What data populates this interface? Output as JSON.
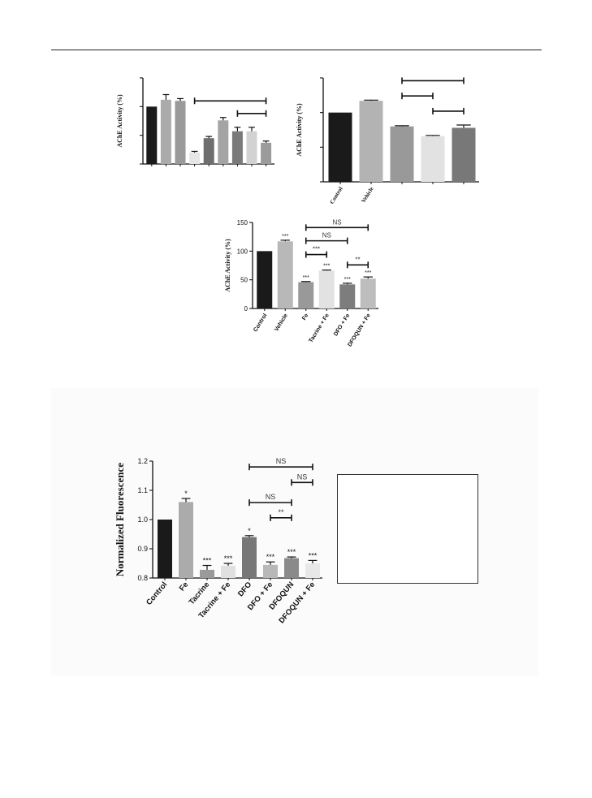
{
  "chart_data": [
    {
      "id": "chart-a",
      "type": "bar",
      "ylabel": "AChE Activity (%)",
      "categories": [
        "",
        "",
        "",
        "",
        "",
        "",
        "",
        "",
        ""
      ],
      "values": [
        100,
        112,
        110,
        20,
        45,
        76,
        57,
        57,
        37
      ],
      "errors": [
        0,
        9,
        4,
        2,
        3,
        5,
        7,
        7,
        3
      ],
      "colors": [
        "#1a1a1a",
        "#ababab",
        "#9a9a9a",
        "#e6e6e6",
        "#6e6e6e",
        "#a4a4a4",
        "#7a7a7a",
        "#d2d2d2",
        "#9b9b9b"
      ],
      "ylim": [
        0,
        150
      ],
      "yticks": [
        0,
        50,
        100,
        150
      ],
      "show_ytick_labels": false,
      "brackets": [
        {
          "from": 3,
          "to": 8,
          "y": 110,
          "label": ""
        },
        {
          "from": 6,
          "to": 8,
          "y": 88,
          "label": ""
        }
      ]
    },
    {
      "id": "chart-b",
      "type": "bar",
      "ylabel": "AChE Activity (%)",
      "categories": [
        "Control",
        "Vehicle",
        "",
        "",
        ""
      ],
      "values": [
        100,
        117,
        80,
        66,
        78
      ],
      "errors": [
        0,
        1,
        1,
        1,
        4
      ],
      "colors": [
        "#1a1a1a",
        "#b3b3b3",
        "#999999",
        "#e2e2e2",
        "#787878"
      ],
      "ylim": [
        0,
        150
      ],
      "yticks": [
        0,
        50,
        100,
        150
      ],
      "show_ytick_labels": false,
      "brackets": [
        {
          "from": 2,
          "to": 4,
          "y": 146,
          "label": ""
        },
        {
          "from": 2,
          "to": 3,
          "y": 124,
          "label": ""
        },
        {
          "from": 3,
          "to": 4,
          "y": 102,
          "label": ""
        }
      ]
    },
    {
      "id": "chart-c",
      "type": "bar",
      "ylabel": "AChE Activity (%)",
      "categories": [
        "Control",
        "Vehicle",
        "Fe",
        "Tacrine + Fe",
        "DFO + Fe",
        "DFOQUN + Fe"
      ],
      "values": [
        100,
        117,
        46,
        66,
        42,
        52
      ],
      "errors": [
        0,
        2,
        1,
        1,
        2,
        3
      ],
      "sig": [
        "",
        "***",
        "***",
        "***",
        "***",
        "***"
      ],
      "colors": [
        "#1a1a1a",
        "#b8b8b8",
        "#999999",
        "#e2e2e2",
        "#7d7d7d",
        "#bdbdbd"
      ],
      "ylim": [
        0,
        150
      ],
      "yticks": [
        0,
        50,
        100,
        150
      ],
      "show_ytick_labels": true,
      "brackets": [
        {
          "from": 2,
          "to": 5,
          "y": 141,
          "label": "NS"
        },
        {
          "from": 2,
          "to": 4,
          "y": 118,
          "label": "NS"
        },
        {
          "from": 2,
          "to": 3,
          "y": 94,
          "label": "***"
        },
        {
          "from": 4,
          "to": 5,
          "y": 76,
          "label": "**"
        }
      ]
    },
    {
      "id": "chart-d",
      "type": "bar",
      "ylabel": "Normalized Fluorescence",
      "categories": [
        "Control",
        "Fe",
        "Tacrine",
        "Tacrine + Fe",
        "DFO",
        "DFO + Fe",
        "DFOQUN",
        "DFOQUN + Fe"
      ],
      "values": [
        1.0,
        1.06,
        0.828,
        0.842,
        0.94,
        0.845,
        0.868,
        0.85
      ],
      "errors": [
        0,
        0.012,
        0.015,
        0.008,
        0.005,
        0.01,
        0.004,
        0.01
      ],
      "sig": [
        "",
        "*",
        "***",
        "***",
        "*",
        "***",
        "***",
        "***"
      ],
      "colors": [
        "#1a1a1a",
        "#ababab",
        "#9a9a9a",
        "#e0e0e0",
        "#777777",
        "#b8b8b8",
        "#8a8a8a",
        "#e8e8e8"
      ],
      "ylim": [
        0.8,
        1.2
      ],
      "yticks": [
        0.8,
        0.9,
        1.0,
        1.1,
        1.2
      ],
      "show_ytick_labels": true,
      "brackets": [
        {
          "from": 4,
          "to": 7,
          "y": 1.18,
          "label": "NS"
        },
        {
          "from": 6,
          "to": 7,
          "y": 1.127,
          "label": "NS"
        },
        {
          "from": 4,
          "to": 6,
          "y": 1.058,
          "label": "NS"
        },
        {
          "from": 5,
          "to": 6,
          "y": 1.006,
          "label": "**"
        }
      ]
    }
  ]
}
